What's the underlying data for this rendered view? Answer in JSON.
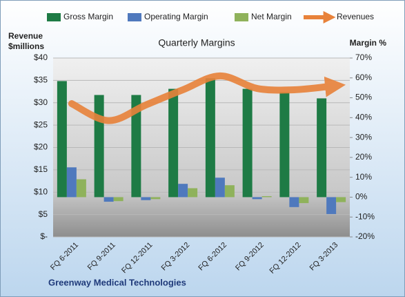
{
  "chart_data": {
    "type": "bar",
    "title": "Quarterly Margins",
    "y_label": "Revenue $millions",
    "y2_label": "Margin %",
    "footer": "Greenway Medical Technologies",
    "categories": [
      "FQ 6-2011",
      "FQ 9-2011",
      "FQ 12-2011",
      "FQ 3-2012",
      "FQ 6-2012",
      "FQ 9-2012",
      "FQ 12-2012",
      "FQ 3-2013"
    ],
    "series": [
      {
        "name": "Gross Margin",
        "color": "#1e7b45",
        "axis": "y2",
        "values": [
          58.4,
          51.4,
          51.4,
          54.5,
          59.8,
          54.5,
          52.8,
          49.7
        ]
      },
      {
        "name": "Operating Margin",
        "color": "#4f79bd",
        "axis": "y2",
        "values": [
          15,
          -2.3,
          -1.5,
          6.7,
          9.8,
          -1,
          -5,
          -8.5
        ]
      },
      {
        "name": "Net Margin",
        "color": "#8fb25b",
        "axis": "y2",
        "values": [
          9,
          -2,
          -1,
          4.5,
          6,
          0.5,
          -3,
          -2.5
        ]
      },
      {
        "name": "Revenues",
        "color": "#e8823a",
        "type": "line",
        "values": [
          29.8,
          26,
          29.5,
          32.9,
          36,
          33.2,
          32.9,
          33.7
        ]
      }
    ],
    "ylim": [
      0,
      40
    ],
    "yticks": [
      {
        "value": 0,
        "label": "$-"
      },
      {
        "value": 5,
        "label": "$5"
      },
      {
        "value": 10,
        "label": "$10"
      },
      {
        "value": 15,
        "label": "$15"
      },
      {
        "value": 20,
        "label": "$20"
      },
      {
        "value": 25,
        "label": "$25"
      },
      {
        "value": 30,
        "label": "$30"
      },
      {
        "value": 35,
        "label": "$35"
      },
      {
        "value": 40,
        "label": "$40"
      }
    ],
    "y2lim": [
      -20,
      70
    ],
    "y2ticks": [
      {
        "value": -20,
        "label": "-20%"
      },
      {
        "value": -10,
        "label": "-10%"
      },
      {
        "value": 0,
        "label": "0%"
      },
      {
        "value": 10,
        "label": "10%"
      },
      {
        "value": 20,
        "label": "20%"
      },
      {
        "value": 30,
        "label": "30%"
      },
      {
        "value": 40,
        "label": "40%"
      },
      {
        "value": 50,
        "label": "50%"
      },
      {
        "value": 60,
        "label": "60%"
      },
      {
        "value": 70,
        "label": "70%"
      }
    ],
    "grid": true
  }
}
